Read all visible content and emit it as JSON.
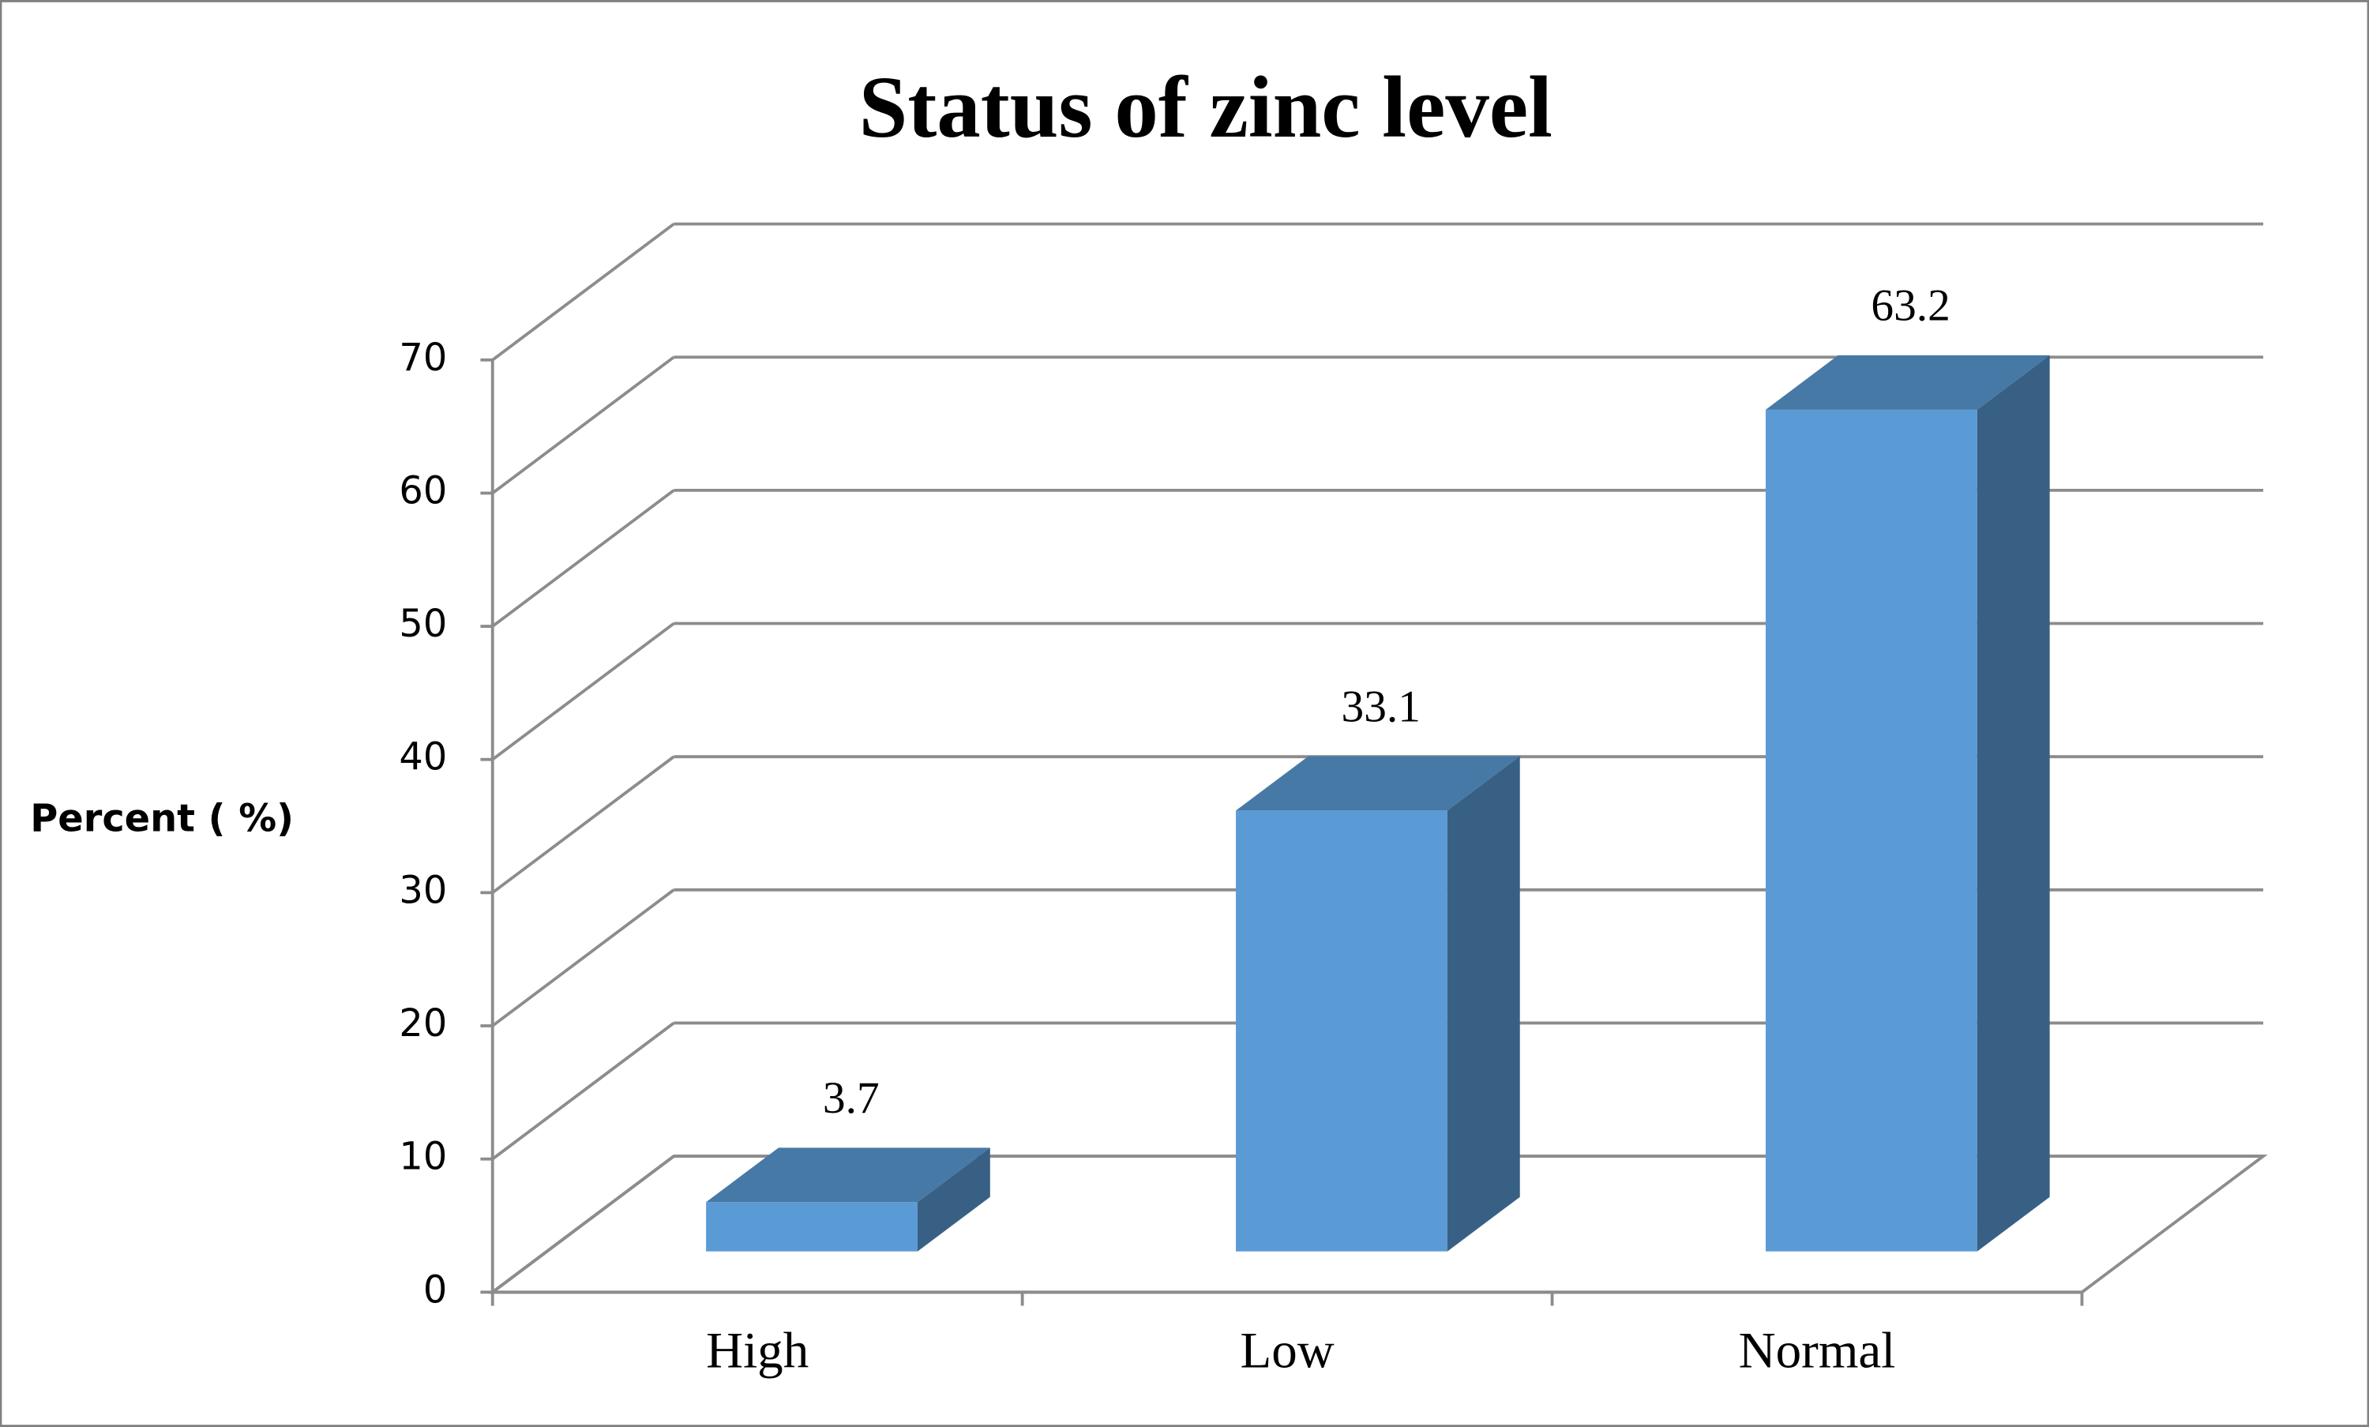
{
  "chart_data": {
    "type": "bar3d",
    "title": "Status of zinc level",
    "y_label": "Percent ( %)",
    "categories": [
      "High",
      "Low",
      "Normal"
    ],
    "values": [
      3.7,
      33.1,
      63.2
    ],
    "color": "#5b9bd5",
    "ylim": [
      0,
      70
    ],
    "yticks": [
      0,
      10,
      20,
      30,
      40,
      50,
      60,
      70
    ],
    "grid": true
  }
}
